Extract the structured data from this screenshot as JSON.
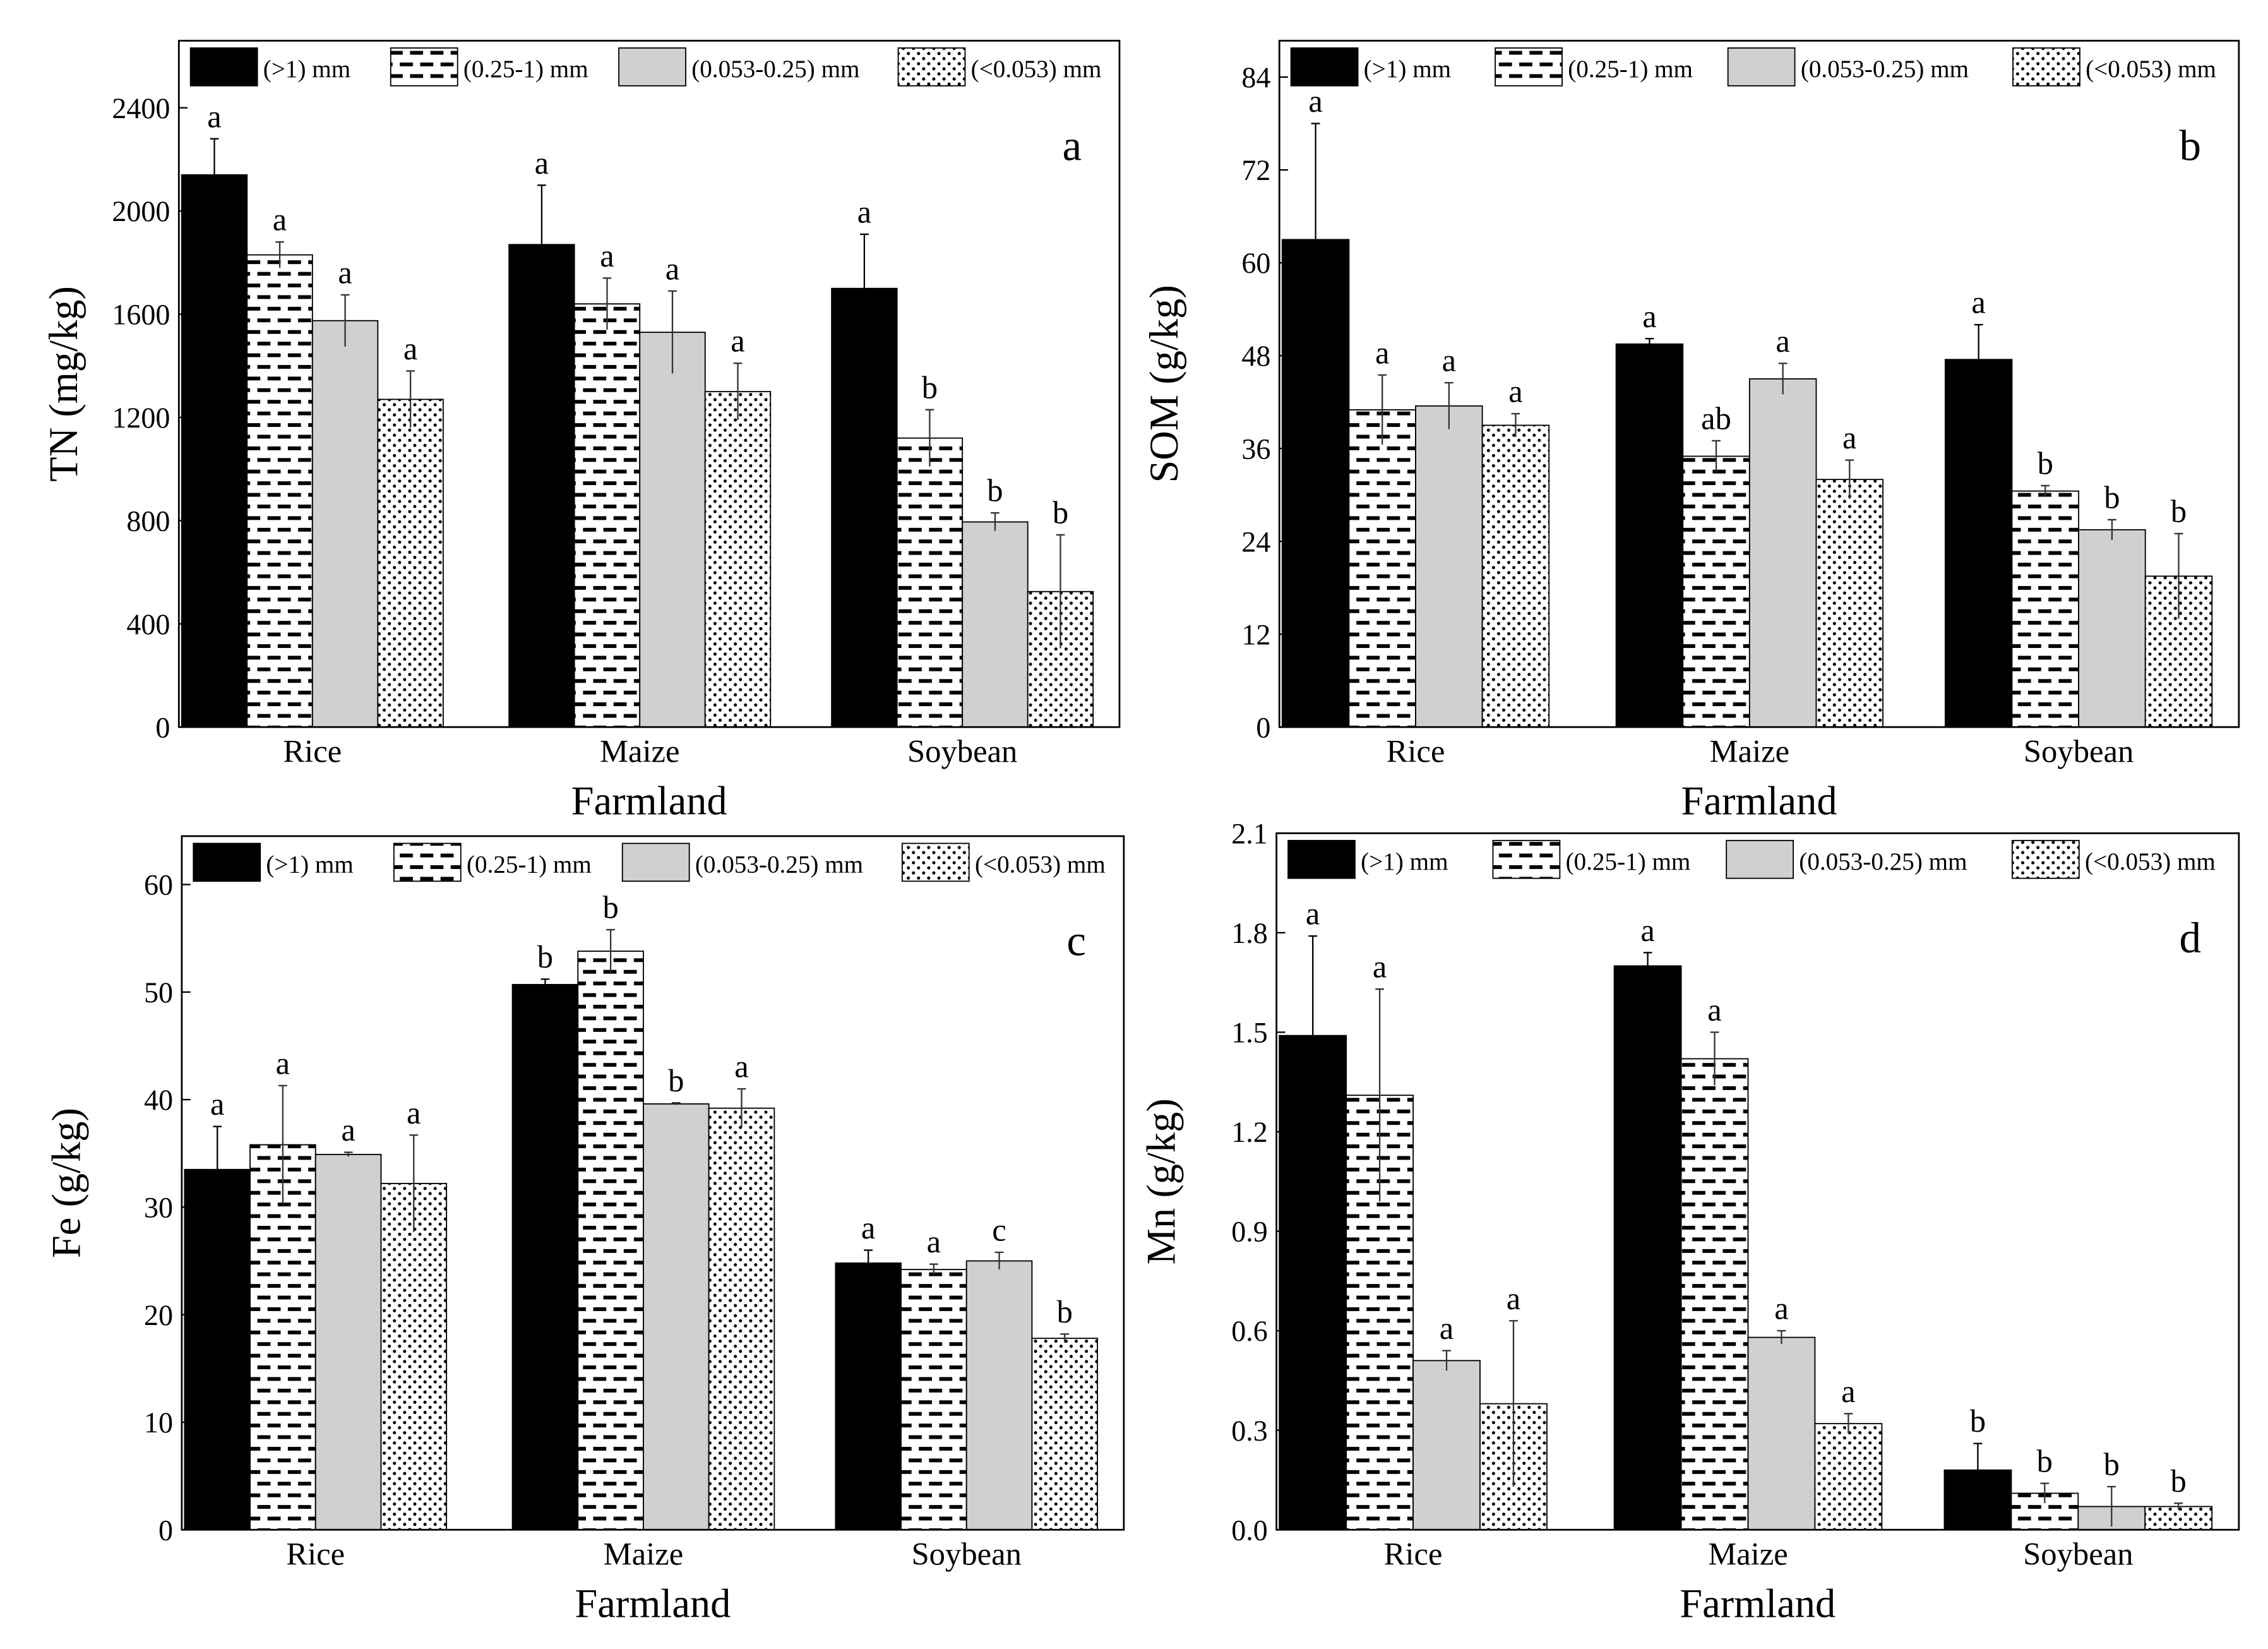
{
  "legend": [
    "(>1) mm",
    "(0.25-1) mm",
    "(0.053-0.25) mm",
    "(<0.053) mm"
  ],
  "chart_data": [
    {
      "type": "bar",
      "panel_label": "a",
      "xlabel": "Farmland",
      "ylabel": "TN (mg/kg)",
      "categories": [
        "Rice",
        "Maize",
        "Soybean"
      ],
      "ylim": [
        0,
        2660
      ],
      "yticks": [
        0,
        400,
        800,
        1200,
        1600,
        2000,
        2400
      ],
      "series": [
        {
          "name": "(>1) mm",
          "values": [
            2140,
            1870,
            1700
          ],
          "errors": [
            140,
            230,
            210
          ],
          "letters": [
            "a",
            "a",
            "a"
          ]
        },
        {
          "name": "(0.25-1) mm",
          "values": [
            1830,
            1640,
            1120
          ],
          "errors": [
            50,
            100,
            110
          ],
          "letters": [
            "a",
            "a",
            "b"
          ]
        },
        {
          "name": "(0.053-0.25) mm",
          "values": [
            1575,
            1530,
            795
          ],
          "errors": [
            100,
            160,
            35
          ],
          "letters": [
            "a",
            "a",
            "b"
          ]
        },
        {
          "name": "(<0.053) mm",
          "values": [
            1270,
            1300,
            525
          ],
          "errors": [
            110,
            110,
            220
          ],
          "letters": [
            "a",
            "a",
            "b"
          ]
        }
      ]
    },
    {
      "type": "bar",
      "panel_label": "b",
      "xlabel": "Farmland",
      "ylabel": "SOM (g/kg)",
      "categories": [
        "Rice",
        "Maize",
        "Soybean"
      ],
      "ylim": [
        0,
        88.7
      ],
      "yticks": [
        0,
        12,
        24,
        36,
        48,
        60,
        72,
        84
      ],
      "series": [
        {
          "name": "(>1) mm",
          "values": [
            63,
            49.5,
            47.5
          ],
          "errors": [
            15,
            0.7,
            4.5
          ],
          "letters": [
            "a",
            "a",
            "a"
          ]
        },
        {
          "name": "(0.25-1) mm",
          "values": [
            41,
            35,
            30.5
          ],
          "errors": [
            4.5,
            2,
            0.7
          ],
          "letters": [
            "a",
            "ab",
            "b"
          ]
        },
        {
          "name": "(0.053-0.25) mm",
          "values": [
            41.5,
            45,
            25.5
          ],
          "errors": [
            3,
            2,
            1.3
          ],
          "letters": [
            "a",
            "a",
            "b"
          ]
        },
        {
          "name": "(<0.053) mm",
          "values": [
            39,
            32,
            19.5
          ],
          "errors": [
            1.5,
            2.5,
            5.5
          ],
          "letters": [
            "a",
            "a",
            "b"
          ]
        }
      ]
    },
    {
      "type": "bar",
      "panel_label": "c",
      "xlabel": "Farmland",
      "ylabel": "Fe (g/kg)",
      "categories": [
        "Rice",
        "Maize",
        "Soybean"
      ],
      "ylim": [
        0,
        64.5
      ],
      "yticks": [
        0,
        10,
        20,
        30,
        40,
        50,
        60
      ],
      "series": [
        {
          "name": "(>1) mm",
          "values": [
            33.5,
            50.7,
            24.8
          ],
          "errors": [
            4,
            0.5,
            1.2
          ],
          "letters": [
            "a",
            "b",
            "a"
          ]
        },
        {
          "name": "(0.25-1) mm",
          "values": [
            35.8,
            53.8,
            24.2
          ],
          "errors": [
            5.5,
            2,
            0.5
          ],
          "letters": [
            "a",
            "b",
            "a"
          ]
        },
        {
          "name": "(0.053-0.25) mm",
          "values": [
            34.9,
            39.6,
            25
          ],
          "errors": [
            0.2,
            0.1,
            0.8
          ],
          "letters": [
            "a",
            "b",
            "c"
          ]
        },
        {
          "name": "(<0.053) mm",
          "values": [
            32.2,
            39.2,
            17.8
          ],
          "errors": [
            4.5,
            1.8,
            0.4
          ],
          "letters": [
            "a",
            "a",
            "b"
          ]
        }
      ]
    },
    {
      "type": "bar",
      "panel_label": "d",
      "xlabel": "Farmland",
      "ylabel": "Mn (g/kg)",
      "categories": [
        "Rice",
        "Maize",
        "Soybean"
      ],
      "ylim": [
        0,
        2.1
      ],
      "yticks": [
        "0.0",
        "0.3",
        "0.6",
        "0.9",
        "1.2",
        "1.5",
        "1.8",
        "2.1"
      ],
      "series": [
        {
          "name": "(>1) mm",
          "values": [
            1.49,
            1.7,
            0.18
          ],
          "errors": [
            0.3,
            0.04,
            0.08
          ],
          "letters": [
            "a",
            "a",
            "b"
          ]
        },
        {
          "name": "(0.25-1) mm",
          "values": [
            1.31,
            1.42,
            0.11
          ],
          "errors": [
            0.32,
            0.08,
            0.03
          ],
          "letters": [
            "a",
            "a",
            "b"
          ]
        },
        {
          "name": "(0.053-0.25) mm",
          "values": [
            0.51,
            0.58,
            0.07
          ],
          "errors": [
            0.03,
            0.02,
            0.06
          ],
          "letters": [
            "a",
            "a",
            "b"
          ]
        },
        {
          "name": "(<0.053) mm",
          "values": [
            0.38,
            0.32,
            0.07
          ],
          "errors": [
            0.25,
            0.03,
            0.01
          ],
          "letters": [
            "a",
            "a",
            "b"
          ]
        }
      ]
    }
  ]
}
